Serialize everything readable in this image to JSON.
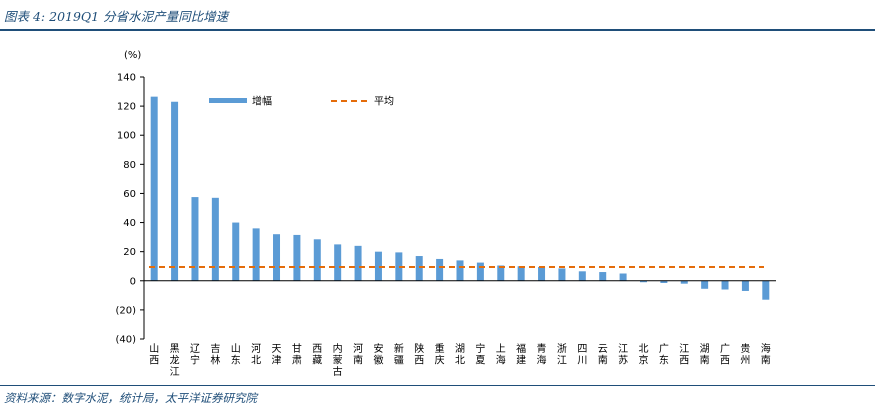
{
  "figure": {
    "title": "图表 4: 2019Q1 分省水泥产量同比增速",
    "source": "资料来源：数字水泥，统计局，太平洋证券研究院"
  },
  "colors": {
    "header": "#1f4e79",
    "bar": "#5b9bd5",
    "average_line": "#e46c0a",
    "axis": "#000000"
  },
  "chart_data": {
    "type": "bar",
    "title": "",
    "ylabel": "(%)",
    "xlabel": "",
    "ylim": [
      -40,
      140
    ],
    "yticks": [
      140,
      120,
      100,
      80,
      60,
      40,
      20,
      0,
      -20,
      -40
    ],
    "ytick_labels": [
      "140",
      "120",
      "100",
      "80",
      "60",
      "40",
      "20",
      "0",
      "(20)",
      "(40)"
    ],
    "categories": [
      "山西",
      "黑龙江",
      "辽宁",
      "吉林",
      "山东",
      "河北",
      "天津",
      "甘肃",
      "西藏",
      "内蒙古",
      "河南",
      "安徽",
      "新疆",
      "陕西",
      "重庆",
      "湖北",
      "宁夏",
      "上海",
      "福建",
      "青海",
      "浙江",
      "四川",
      "云南",
      "江苏",
      "北京",
      "广东",
      "江西",
      "湖南",
      "广西",
      "贵州",
      "海南"
    ],
    "series": [
      {
        "name": "增幅",
        "kind": "bar",
        "values": [
          126.5,
          123,
          57.5,
          57,
          40,
          36,
          32,
          31.5,
          28.5,
          25,
          24,
          20,
          19.5,
          17,
          15,
          14,
          12.5,
          10.5,
          10,
          9.5,
          8.5,
          6.5,
          6,
          5,
          -1,
          -1.5,
          -2,
          -5.5,
          -6,
          -7,
          -13
        ]
      },
      {
        "name": "平均",
        "kind": "line",
        "style": "dashed",
        "value": 9.5
      }
    ],
    "legend": {
      "position": "top",
      "items": [
        "增幅",
        "平均"
      ]
    },
    "grid": false
  }
}
